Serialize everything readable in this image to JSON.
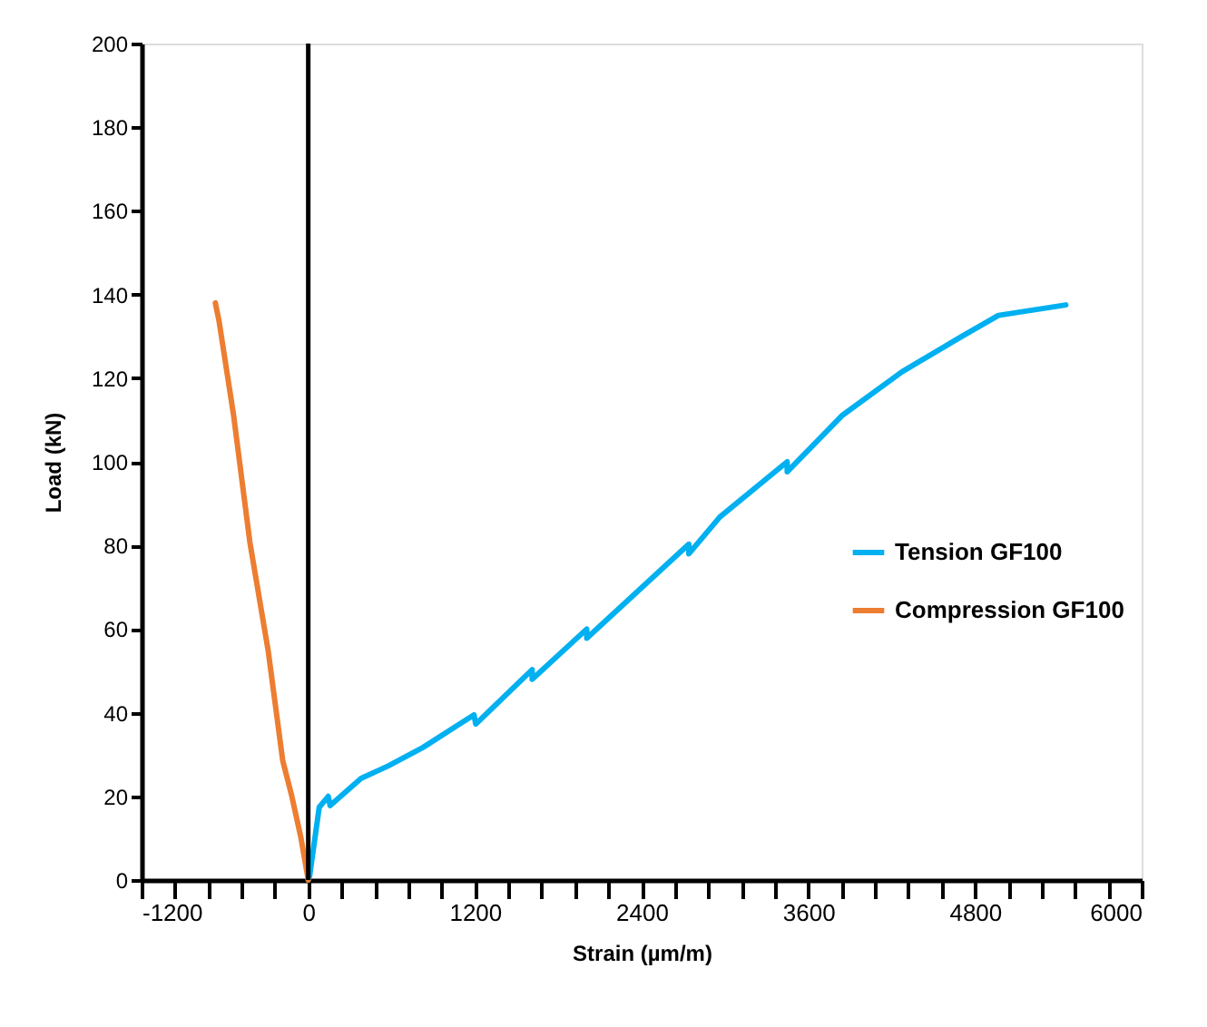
{
  "chart_data": {
    "type": "line",
    "xlabel": "Strain  (µm/m)",
    "ylabel": "Load (kN)",
    "xlim": [
      -1200,
      6000
    ],
    "xticks": [
      -1200,
      {
        "value": -960,
        "label": null
      },
      {
        "value": -720,
        "label": null
      },
      {
        "value": -480,
        "label": null
      },
      {
        "value": -240,
        "label": null
      },
      0,
      {
        "value": 240,
        "label": null
      },
      {
        "value": 480,
        "label": null
      },
      {
        "value": 720,
        "label": null
      },
      {
        "value": 960,
        "label": null
      },
      1200,
      {
        "value": 1440,
        "label": null
      },
      {
        "value": 1680,
        "label": null
      },
      {
        "value": 1920,
        "label": null
      },
      {
        "value": 2160,
        "label": null
      },
      2400,
      {
        "value": 2640,
        "label": null
      },
      {
        "value": 2880,
        "label": null
      },
      {
        "value": 3120,
        "label": null
      },
      {
        "value": 3360,
        "label": null
      },
      3600,
      {
        "value": 3840,
        "label": null
      },
      {
        "value": 4080,
        "label": null
      },
      {
        "value": 4320,
        "label": null
      },
      {
        "value": 4560,
        "label": null
      },
      4800,
      {
        "value": 5040,
        "label": null
      },
      {
        "value": 5280,
        "label": null
      },
      {
        "value": 5520,
        "label": null
      },
      {
        "value": 5760,
        "label": null
      },
      6000
    ],
    "ylim": [
      0,
      200
    ],
    "yticks": [
      0,
      20,
      40,
      60,
      80,
      100,
      120,
      140,
      160,
      180,
      200
    ],
    "grid": false,
    "legend": "right",
    "marker": "none",
    "line_style": "solid",
    "ref_lines": [
      {
        "axis": "x",
        "value": 0,
        "color": "#000000"
      }
    ],
    "series": [
      {
        "name": "Tension GF100",
        "color": "#00b0f0",
        "x": [
          0,
          10,
          79,
          144,
          157,
          380,
          577,
          826,
          1193,
          1206,
          1612,
          1612,
          2005,
          2005,
          2740,
          2740,
          2963,
          3448,
          3448,
          3841,
          4274,
          4707,
          4969,
          5454
        ],
        "values": [
          0,
          1,
          17.4,
          20,
          17.8,
          24.3,
          27.3,
          31.7,
          39.5,
          37.3,
          50.3,
          48,
          60,
          57.8,
          80.3,
          78,
          86.8,
          100,
          97.6,
          111,
          121.5,
          130,
          135,
          137.5
        ]
      },
      {
        "name": "Compression GF100",
        "color": "#ed7d31",
        "x": [
          0,
          -52,
          -118,
          -184,
          -288,
          -420,
          -537,
          -642,
          -669
        ],
        "values": [
          0,
          10,
          20,
          28.6,
          54.7,
          80.7,
          111,
          133.6,
          138
        ]
      }
    ]
  }
}
